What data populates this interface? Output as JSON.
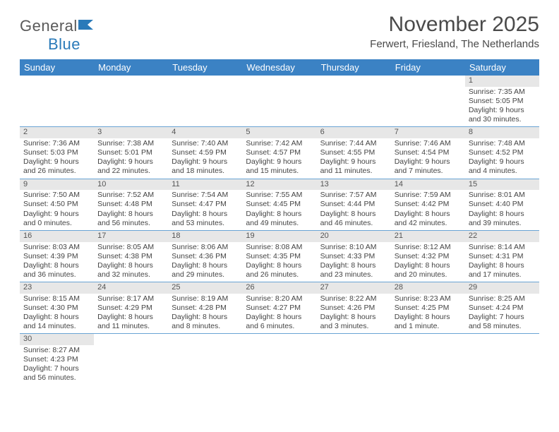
{
  "logo": {
    "part1": "General",
    "part2": "Blue"
  },
  "title": "November 2025",
  "location": "Ferwert, Friesland, The Netherlands",
  "colors": {
    "header_bg": "#3b82c4",
    "header_text": "#ffffff",
    "daynum_bg": "#e7e7e7",
    "row_border": "#6aa4d4",
    "text": "#444444",
    "title_text": "#4a4a4a",
    "logo_gray": "#5a5a5a",
    "logo_blue": "#2a7ab9",
    "background": "#ffffff"
  },
  "typography": {
    "title_fontsize": 30,
    "location_fontsize": 15,
    "header_fontsize": 13,
    "cell_fontsize": 10.5,
    "daynum_fontsize": 11,
    "logo_fontsize": 22
  },
  "day_headers": [
    "Sunday",
    "Monday",
    "Tuesday",
    "Wednesday",
    "Thursday",
    "Friday",
    "Saturday"
  ],
  "weeks": [
    [
      null,
      null,
      null,
      null,
      null,
      null,
      {
        "n": "1",
        "sr": "Sunrise: 7:35 AM",
        "ss": "Sunset: 5:05 PM",
        "dl": "Daylight: 9 hours and 30 minutes."
      }
    ],
    [
      {
        "n": "2",
        "sr": "Sunrise: 7:36 AM",
        "ss": "Sunset: 5:03 PM",
        "dl": "Daylight: 9 hours and 26 minutes."
      },
      {
        "n": "3",
        "sr": "Sunrise: 7:38 AM",
        "ss": "Sunset: 5:01 PM",
        "dl": "Daylight: 9 hours and 22 minutes."
      },
      {
        "n": "4",
        "sr": "Sunrise: 7:40 AM",
        "ss": "Sunset: 4:59 PM",
        "dl": "Daylight: 9 hours and 18 minutes."
      },
      {
        "n": "5",
        "sr": "Sunrise: 7:42 AM",
        "ss": "Sunset: 4:57 PM",
        "dl": "Daylight: 9 hours and 15 minutes."
      },
      {
        "n": "6",
        "sr": "Sunrise: 7:44 AM",
        "ss": "Sunset: 4:55 PM",
        "dl": "Daylight: 9 hours and 11 minutes."
      },
      {
        "n": "7",
        "sr": "Sunrise: 7:46 AM",
        "ss": "Sunset: 4:54 PM",
        "dl": "Daylight: 9 hours and 7 minutes."
      },
      {
        "n": "8",
        "sr": "Sunrise: 7:48 AM",
        "ss": "Sunset: 4:52 PM",
        "dl": "Daylight: 9 hours and 4 minutes."
      }
    ],
    [
      {
        "n": "9",
        "sr": "Sunrise: 7:50 AM",
        "ss": "Sunset: 4:50 PM",
        "dl": "Daylight: 9 hours and 0 minutes."
      },
      {
        "n": "10",
        "sr": "Sunrise: 7:52 AM",
        "ss": "Sunset: 4:48 PM",
        "dl": "Daylight: 8 hours and 56 minutes."
      },
      {
        "n": "11",
        "sr": "Sunrise: 7:54 AM",
        "ss": "Sunset: 4:47 PM",
        "dl": "Daylight: 8 hours and 53 minutes."
      },
      {
        "n": "12",
        "sr": "Sunrise: 7:55 AM",
        "ss": "Sunset: 4:45 PM",
        "dl": "Daylight: 8 hours and 49 minutes."
      },
      {
        "n": "13",
        "sr": "Sunrise: 7:57 AM",
        "ss": "Sunset: 4:44 PM",
        "dl": "Daylight: 8 hours and 46 minutes."
      },
      {
        "n": "14",
        "sr": "Sunrise: 7:59 AM",
        "ss": "Sunset: 4:42 PM",
        "dl": "Daylight: 8 hours and 42 minutes."
      },
      {
        "n": "15",
        "sr": "Sunrise: 8:01 AM",
        "ss": "Sunset: 4:40 PM",
        "dl": "Daylight: 8 hours and 39 minutes."
      }
    ],
    [
      {
        "n": "16",
        "sr": "Sunrise: 8:03 AM",
        "ss": "Sunset: 4:39 PM",
        "dl": "Daylight: 8 hours and 36 minutes."
      },
      {
        "n": "17",
        "sr": "Sunrise: 8:05 AM",
        "ss": "Sunset: 4:38 PM",
        "dl": "Daylight: 8 hours and 32 minutes."
      },
      {
        "n": "18",
        "sr": "Sunrise: 8:06 AM",
        "ss": "Sunset: 4:36 PM",
        "dl": "Daylight: 8 hours and 29 minutes."
      },
      {
        "n": "19",
        "sr": "Sunrise: 8:08 AM",
        "ss": "Sunset: 4:35 PM",
        "dl": "Daylight: 8 hours and 26 minutes."
      },
      {
        "n": "20",
        "sr": "Sunrise: 8:10 AM",
        "ss": "Sunset: 4:33 PM",
        "dl": "Daylight: 8 hours and 23 minutes."
      },
      {
        "n": "21",
        "sr": "Sunrise: 8:12 AM",
        "ss": "Sunset: 4:32 PM",
        "dl": "Daylight: 8 hours and 20 minutes."
      },
      {
        "n": "22",
        "sr": "Sunrise: 8:14 AM",
        "ss": "Sunset: 4:31 PM",
        "dl": "Daylight: 8 hours and 17 minutes."
      }
    ],
    [
      {
        "n": "23",
        "sr": "Sunrise: 8:15 AM",
        "ss": "Sunset: 4:30 PM",
        "dl": "Daylight: 8 hours and 14 minutes."
      },
      {
        "n": "24",
        "sr": "Sunrise: 8:17 AM",
        "ss": "Sunset: 4:29 PM",
        "dl": "Daylight: 8 hours and 11 minutes."
      },
      {
        "n": "25",
        "sr": "Sunrise: 8:19 AM",
        "ss": "Sunset: 4:28 PM",
        "dl": "Daylight: 8 hours and 8 minutes."
      },
      {
        "n": "26",
        "sr": "Sunrise: 8:20 AM",
        "ss": "Sunset: 4:27 PM",
        "dl": "Daylight: 8 hours and 6 minutes."
      },
      {
        "n": "27",
        "sr": "Sunrise: 8:22 AM",
        "ss": "Sunset: 4:26 PM",
        "dl": "Daylight: 8 hours and 3 minutes."
      },
      {
        "n": "28",
        "sr": "Sunrise: 8:23 AM",
        "ss": "Sunset: 4:25 PM",
        "dl": "Daylight: 8 hours and 1 minute."
      },
      {
        "n": "29",
        "sr": "Sunrise: 8:25 AM",
        "ss": "Sunset: 4:24 PM",
        "dl": "Daylight: 7 hours and 58 minutes."
      }
    ],
    [
      {
        "n": "30",
        "sr": "Sunrise: 8:27 AM",
        "ss": "Sunset: 4:23 PM",
        "dl": "Daylight: 7 hours and 56 minutes."
      },
      null,
      null,
      null,
      null,
      null,
      null
    ]
  ]
}
